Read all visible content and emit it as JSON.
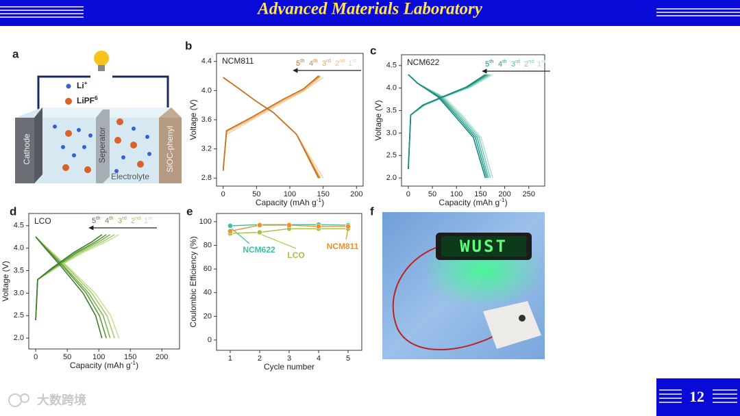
{
  "header": {
    "title": "Advanced Materials Laboratory"
  },
  "page_number": "12",
  "watermark": "大数跨境",
  "diagram": {
    "panel_label": "a",
    "ion": [
      "Li",
      "+"
    ],
    "salt": [
      "LiPF",
      "6"
    ],
    "cathode": "Cathode",
    "separator": "Seperator",
    "electrolyte": "Electrolyte",
    "anode": "SiOC-phenyl"
  },
  "photo": {
    "panel_label": "f",
    "sign": "WUST"
  },
  "chart_data": [
    {
      "type": "line",
      "panel_label": "b",
      "title": "NCM811",
      "x_label": [
        "Capacity (mAh g",
        "-1",
        ")"
      ],
      "y_label": "Voltage (V)",
      "xlim": [
        -10,
        210
      ],
      "xticks": [
        0,
        50,
        100,
        150,
        200
      ],
      "ylim": [
        2.69,
        4.51
      ],
      "yticks": [
        2.8,
        3.2,
        3.6,
        4.0,
        4.4
      ],
      "legend": "top-right",
      "series": [
        {
          "name": [
            "5",
            "th"
          ],
          "color": "#c96f1c",
          "x": [
            0,
            5,
            40,
            90,
            120,
            143,
            null,
            0,
            20,
            50,
            75,
            110,
            143
          ],
          "values": [
            2.9,
            3.45,
            3.62,
            3.88,
            4.02,
            4.2,
            null,
            4.18,
            4.05,
            3.85,
            3.7,
            3.4,
            2.8
          ]
        },
        {
          "name": [
            "4",
            "th"
          ],
          "color": "#d9862f",
          "x": [
            0,
            5,
            40,
            90,
            120,
            144,
            null,
            0,
            20,
            50,
            75,
            110,
            144
          ],
          "values": [
            2.9,
            3.45,
            3.62,
            3.88,
            4.02,
            4.2,
            null,
            4.18,
            4.05,
            3.85,
            3.7,
            3.4,
            2.8
          ]
        },
        {
          "name": [
            "3",
            "rd"
          ],
          "color": "#e5a04c",
          "x": [
            0,
            5,
            40,
            90,
            120,
            145,
            null,
            0,
            20,
            50,
            75,
            110,
            145
          ],
          "values": [
            2.9,
            3.45,
            3.62,
            3.88,
            4.02,
            4.2,
            null,
            4.18,
            4.05,
            3.85,
            3.7,
            3.4,
            2.8
          ]
        },
        {
          "name": [
            "2",
            "nd"
          ],
          "color": "#eebb78",
          "x": [
            0,
            5,
            40,
            90,
            120,
            146,
            null,
            0,
            20,
            50,
            75,
            110,
            146
          ],
          "values": [
            2.92,
            3.43,
            3.6,
            3.86,
            4.0,
            4.19,
            null,
            4.18,
            4.05,
            3.85,
            3.7,
            3.4,
            2.8
          ]
        },
        {
          "name": [
            "1",
            "st"
          ],
          "color": "#f4d3a4",
          "x": [
            0,
            5,
            40,
            90,
            120,
            150,
            null,
            0,
            20,
            50,
            75,
            110,
            150
          ],
          "values": [
            2.95,
            3.4,
            3.58,
            3.84,
            3.99,
            4.18,
            null,
            4.18,
            4.05,
            3.85,
            3.7,
            3.4,
            2.8
          ]
        }
      ]
    },
    {
      "type": "line",
      "panel_label": "c",
      "title": "NCM622",
      "x_label": [
        "Capacity (mAh g",
        "-1",
        ")"
      ],
      "y_label": "Voltage (V)",
      "xlim": [
        -14,
        283
      ],
      "xticks": [
        0,
        50,
        100,
        150,
        200,
        250
      ],
      "ylim": [
        1.82,
        4.74
      ],
      "yticks": [
        2.0,
        2.5,
        3.0,
        3.5,
        4.0,
        4.5
      ],
      "legend": "top-right",
      "series": [
        {
          "name": [
            "5",
            "th"
          ],
          "color": "#17857a",
          "x": [
            0,
            5,
            30,
            70,
            120,
            160,
            null,
            0,
            20,
            62,
            95,
            135,
            160
          ],
          "values": [
            2.2,
            3.4,
            3.62,
            3.8,
            4.02,
            4.3,
            null,
            4.3,
            4.1,
            3.8,
            3.4,
            2.9,
            2.0
          ]
        },
        {
          "name": [
            "4",
            "th"
          ],
          "color": "#2a9e8e",
          "x": [
            0,
            5,
            31,
            71,
            122,
            163,
            null,
            0,
            20,
            65,
            99,
            139,
            163
          ],
          "values": [
            2.2,
            3.4,
            3.62,
            3.8,
            4.02,
            4.3,
            null,
            4.3,
            4.1,
            3.8,
            3.4,
            2.9,
            2.0
          ]
        },
        {
          "name": [
            "3",
            "rd"
          ],
          "color": "#4fb6a3",
          "x": [
            0,
            5,
            32,
            72,
            124,
            166,
            null,
            0,
            20,
            68,
            103,
            143,
            166
          ],
          "values": [
            2.2,
            3.4,
            3.62,
            3.8,
            4.02,
            4.3,
            null,
            4.3,
            4.1,
            3.8,
            3.4,
            2.9,
            2.0
          ]
        },
        {
          "name": [
            "2",
            "nd"
          ],
          "color": "#7fcdbb",
          "x": [
            0,
            5,
            33,
            74,
            127,
            170,
            null,
            0,
            20,
            71,
            107,
            147,
            170
          ],
          "values": [
            2.2,
            3.4,
            3.62,
            3.8,
            4.02,
            4.3,
            null,
            4.3,
            4.1,
            3.8,
            3.4,
            2.9,
            2.0
          ]
        },
        {
          "name": [
            "1",
            "st"
          ],
          "color": "#b0e2d4",
          "x": [
            0,
            5,
            35,
            76,
            130,
            175,
            null,
            0,
            20,
            75,
            111,
            151,
            175
          ],
          "values": [
            2.2,
            3.4,
            3.62,
            3.8,
            4.02,
            4.3,
            null,
            4.3,
            4.1,
            3.8,
            3.4,
            2.9,
            2.0
          ]
        }
      ]
    },
    {
      "type": "line",
      "panel_label": "d",
      "title": "LCO",
      "x_label": [
        "Capacity (mAh g",
        "-1",
        ")"
      ],
      "y_label": "Voltage (V)",
      "xlim": [
        -11,
        228
      ],
      "xticks": [
        0,
        50,
        100,
        150,
        200
      ],
      "ylim": [
        1.76,
        4.77
      ],
      "yticks": [
        2.0,
        2.5,
        3.0,
        3.5,
        4.0,
        4.5
      ],
      "legend": "top-right",
      "series": [
        {
          "name": [
            "5",
            "th"
          ],
          "color": "#3d7a2c",
          "x": [
            0,
            3,
            25,
            60,
            90,
            105,
            null,
            0,
            15,
            40,
            75,
            95,
            105
          ],
          "values": [
            2.4,
            3.3,
            3.55,
            3.9,
            4.15,
            4.3,
            null,
            4.25,
            4.0,
            3.6,
            3.0,
            2.5,
            2.0
          ]
        },
        {
          "name": [
            "4",
            "th"
          ],
          "color": "#5a9a3a",
          "x": [
            0,
            3,
            27,
            64,
            96,
            112,
            null,
            0,
            16,
            43,
            80,
            101,
            112
          ],
          "values": [
            2.4,
            3.3,
            3.55,
            3.9,
            4.15,
            4.3,
            null,
            4.25,
            4.0,
            3.6,
            3.0,
            2.5,
            2.0
          ]
        },
        {
          "name": [
            "3",
            "rd"
          ],
          "color": "#7fb54e",
          "x": [
            0,
            3,
            28,
            67,
            101,
            118,
            null,
            0,
            17,
            45,
            84,
            107,
            118
          ],
          "values": [
            2.4,
            3.3,
            3.55,
            3.9,
            4.15,
            4.3,
            null,
            4.25,
            4.0,
            3.6,
            3.0,
            2.5,
            2.0
          ]
        },
        {
          "name": [
            "2",
            "nd"
          ],
          "color": "#a6cc6e",
          "x": [
            0,
            3,
            30,
            71,
            107,
            125,
            null,
            0,
            18,
            48,
            89,
            113,
            125
          ],
          "values": [
            2.4,
            3.3,
            3.55,
            3.9,
            4.15,
            4.3,
            null,
            4.25,
            4.0,
            3.6,
            3.0,
            2.5,
            2.0
          ]
        },
        {
          "name": [
            "1",
            "st"
          ],
          "color": "#cbe29a",
          "x": [
            0,
            3,
            31,
            75,
            113,
            132,
            null,
            0,
            19,
            50,
            94,
            119,
            132
          ],
          "values": [
            2.4,
            3.3,
            3.55,
            3.9,
            4.15,
            4.3,
            null,
            4.25,
            4.0,
            3.6,
            3.0,
            2.5,
            2.0
          ]
        }
      ]
    },
    {
      "type": "scatter-line",
      "panel_label": "e",
      "x_label": "Cycle number",
      "y_label": "Coulombic Efficiency (%)",
      "xlim": [
        0.535,
        5.465
      ],
      "xticks": [
        1,
        2,
        3,
        4,
        5
      ],
      "ylim": [
        -8.7,
        106.9
      ],
      "yticks": [
        0,
        20,
        40,
        60,
        80,
        100
      ],
      "series": [
        {
          "name": "NCM622",
          "color": "#3cbfa0",
          "x": [
            1,
            2,
            3,
            4,
            5
          ],
          "values": [
            96.5,
            97.5,
            97.5,
            97.5,
            97
          ]
        },
        {
          "name": "LCO",
          "color": "#a8c040",
          "x": [
            1,
            2,
            3,
            4,
            5
          ],
          "values": [
            90,
            91,
            94,
            94,
            94
          ]
        },
        {
          "name": "NCM811",
          "color": "#f0902a",
          "x": [
            1,
            2,
            3,
            4,
            5
          ],
          "values": [
            92,
            97,
            97,
            96,
            96
          ]
        }
      ]
    }
  ]
}
